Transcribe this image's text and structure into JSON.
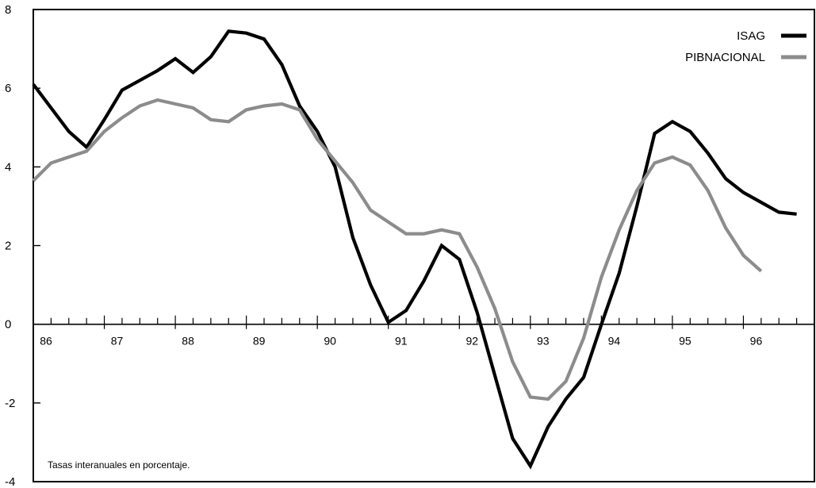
{
  "chart_data": {
    "type": "line",
    "note": "Tasas interanuales en porcentaje.",
    "ylim": [
      -4,
      8
    ],
    "yticks": [
      "8",
      "6",
      "4",
      "2",
      "0",
      "-2",
      "-4"
    ],
    "xlim": [
      86.0,
      97.0
    ],
    "year_labels": [
      "86",
      "87",
      "88",
      "89",
      "90",
      "91",
      "92",
      "93",
      "94",
      "95",
      "96"
    ],
    "legend_position": "top-right",
    "grid": false,
    "series": [
      {
        "name": "ISAG",
        "color": "#000000",
        "points": [
          [
            86.0,
            6.1
          ],
          [
            86.25,
            5.5
          ],
          [
            86.5,
            4.9
          ],
          [
            86.75,
            4.5
          ],
          [
            87.0,
            5.2
          ],
          [
            87.25,
            5.95
          ],
          [
            87.5,
            6.2
          ],
          [
            87.75,
            6.45
          ],
          [
            88.0,
            6.75
          ],
          [
            88.25,
            6.4
          ],
          [
            88.5,
            6.8
          ],
          [
            88.75,
            7.45
          ],
          [
            89.0,
            7.4
          ],
          [
            89.25,
            7.25
          ],
          [
            89.5,
            6.6
          ],
          [
            89.75,
            5.55
          ],
          [
            90.0,
            4.9
          ],
          [
            90.25,
            4.0
          ],
          [
            90.5,
            2.2
          ],
          [
            90.75,
            1.0
          ],
          [
            91.0,
            0.05
          ],
          [
            91.25,
            0.35
          ],
          [
            91.5,
            1.1
          ],
          [
            91.75,
            2.0
          ],
          [
            92.0,
            1.65
          ],
          [
            92.25,
            0.3
          ],
          [
            92.5,
            -1.3
          ],
          [
            92.75,
            -2.9
          ],
          [
            93.0,
            -3.6
          ],
          [
            93.25,
            -2.6
          ],
          [
            93.5,
            -1.9
          ],
          [
            93.75,
            -1.35
          ],
          [
            94.0,
            0.0
          ],
          [
            94.25,
            1.3
          ],
          [
            94.5,
            3.0
          ],
          [
            94.75,
            4.85
          ],
          [
            95.0,
            5.15
          ],
          [
            95.25,
            4.9
          ],
          [
            95.5,
            4.35
          ],
          [
            95.75,
            3.7
          ],
          [
            96.0,
            3.35
          ],
          [
            96.25,
            3.1
          ],
          [
            96.5,
            2.85
          ],
          [
            96.75,
            2.8
          ]
        ]
      },
      {
        "name": "PIBNACIONAL",
        "color": "#8c8c8c",
        "points": [
          [
            86.0,
            3.65
          ],
          [
            86.25,
            4.1
          ],
          [
            86.5,
            4.25
          ],
          [
            86.75,
            4.4
          ],
          [
            87.0,
            4.9
          ],
          [
            87.25,
            5.25
          ],
          [
            87.5,
            5.55
          ],
          [
            87.75,
            5.7
          ],
          [
            88.0,
            5.6
          ],
          [
            88.25,
            5.5
          ],
          [
            88.5,
            5.2
          ],
          [
            88.75,
            5.15
          ],
          [
            89.0,
            5.45
          ],
          [
            89.25,
            5.55
          ],
          [
            89.5,
            5.6
          ],
          [
            89.75,
            5.45
          ],
          [
            90.0,
            4.7
          ],
          [
            90.25,
            4.15
          ],
          [
            90.5,
            3.6
          ],
          [
            90.75,
            2.9
          ],
          [
            91.0,
            2.6
          ],
          [
            91.25,
            2.3
          ],
          [
            91.5,
            2.3
          ],
          [
            91.75,
            2.4
          ],
          [
            92.0,
            2.3
          ],
          [
            92.25,
            1.45
          ],
          [
            92.5,
            0.4
          ],
          [
            92.75,
            -0.95
          ],
          [
            93.0,
            -1.85
          ],
          [
            93.25,
            -1.9
          ],
          [
            93.5,
            -1.45
          ],
          [
            93.75,
            -0.35
          ],
          [
            94.0,
            1.2
          ],
          [
            94.25,
            2.4
          ],
          [
            94.5,
            3.4
          ],
          [
            94.75,
            4.1
          ],
          [
            95.0,
            4.25
          ],
          [
            95.25,
            4.05
          ],
          [
            95.5,
            3.4
          ],
          [
            95.75,
            2.45
          ],
          [
            96.0,
            1.75
          ],
          [
            96.25,
            1.35
          ]
        ]
      }
    ]
  }
}
